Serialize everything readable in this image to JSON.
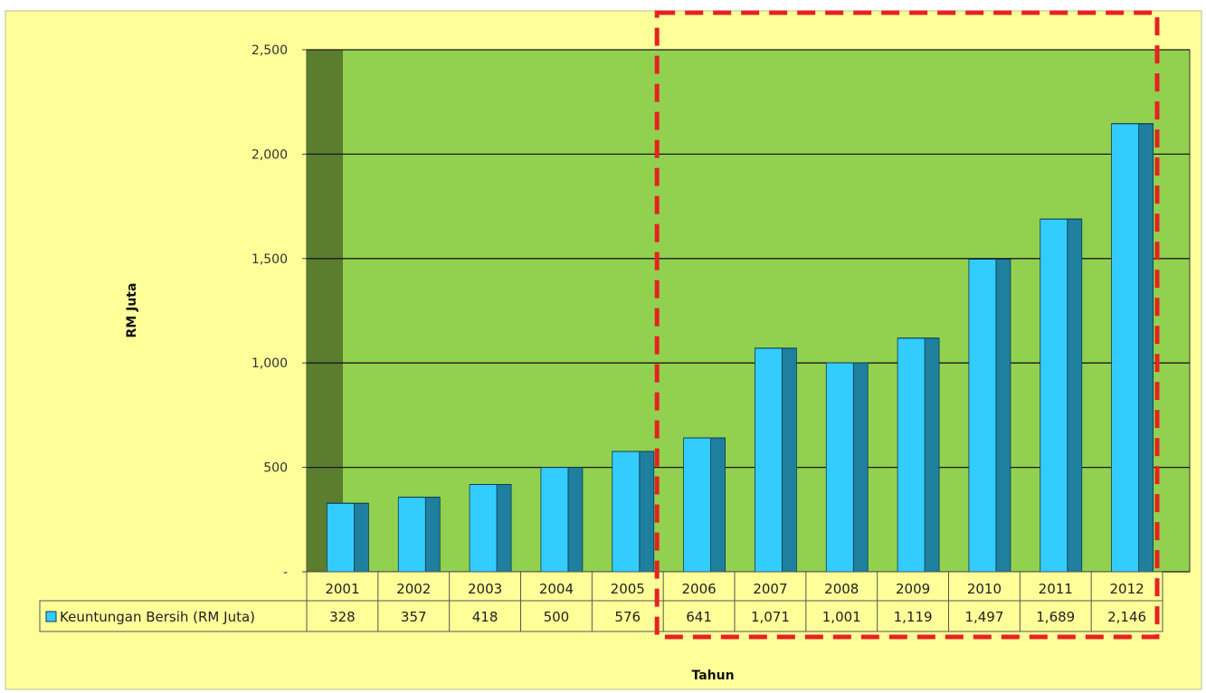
{
  "chart_data": {
    "type": "bar",
    "categories": [
      "2001",
      "2002",
      "2003",
      "2004",
      "2005",
      "2006",
      "2007",
      "2008",
      "2009",
      "2010",
      "2011",
      "2012"
    ],
    "series": [
      {
        "name": "Keuntungan Bersih (RM Juta)",
        "values": [
          328,
          357,
          418,
          500,
          576,
          641,
          1071,
          1001,
          1119,
          1497,
          1689,
          2146
        ],
        "value_labels": [
          "328",
          "357",
          "418",
          "500",
          "576",
          "641",
          "1,071",
          "1,001",
          "1,119",
          "1,497",
          "1,689",
          "2,146"
        ]
      }
    ],
    "xlabel": "Tahun",
    "ylabel": "RM Juta",
    "ylim": [
      0,
      2500
    ],
    "yticks": [
      0,
      500,
      1000,
      1500,
      2000,
      2500
    ],
    "ytick_labels": [
      "-",
      "500",
      "1,000",
      "1,500",
      "2,000",
      "2,500"
    ],
    "grid": true,
    "data_table": true,
    "highlight": {
      "style": "red dashed rectangle",
      "from": "2006",
      "to": "2012"
    },
    "colors": {
      "background": "#ffff99",
      "plot_area": "#92d050",
      "plot_wall_left": "#5a7d2e",
      "bar_face": "#33ccff",
      "bar_side": "#1f7f9f",
      "highlight": "#e52222"
    }
  }
}
